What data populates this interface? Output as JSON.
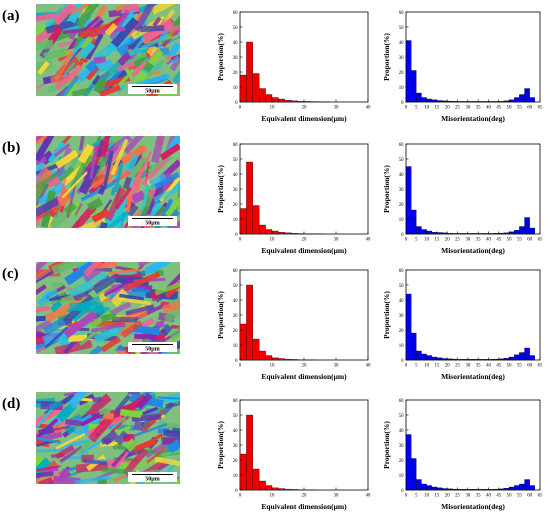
{
  "rows": [
    {
      "label": "(a)",
      "scale_bar": "50μm"
    },
    {
      "label": "(b)",
      "scale_bar": "50μm"
    },
    {
      "label": "(c)",
      "scale_bar": "50μm"
    },
    {
      "label": "(d)",
      "scale_bar": "50μm"
    }
  ],
  "chart_data": [
    {
      "panel": "(a) size",
      "type": "bar",
      "color": "#ee0000",
      "xlabel": "Equivalent dimension(μm)",
      "ylabel": "Proportion(%)",
      "xlim": [
        0,
        40
      ],
      "ylim": [
        0,
        60
      ],
      "bin_width": 2,
      "xticks": [
        0,
        10,
        20,
        30,
        40
      ],
      "yticks": [
        0,
        10,
        20,
        30,
        40,
        50,
        60
      ],
      "x": [
        0,
        2,
        4,
        6,
        8,
        10,
        12,
        14,
        16,
        18,
        20,
        22,
        24,
        26
      ],
      "values": [
        18,
        40,
        19,
        9,
        5,
        3,
        2,
        1.2,
        0.8,
        0.5,
        0.4,
        0.3,
        0.2,
        0.1
      ]
    },
    {
      "panel": "(a) misorientation",
      "type": "bar",
      "color": "#0000ee",
      "xlabel": "Misorientation(deg)",
      "ylabel": "Proportion(%)",
      "xlim": [
        0,
        65
      ],
      "ylim": [
        0,
        60
      ],
      "bin_width": 2.5,
      "xticks": [
        0,
        5,
        10,
        15,
        20,
        25,
        30,
        35,
        40,
        45,
        50,
        55,
        60,
        65
      ],
      "yticks": [
        0,
        10,
        20,
        30,
        40,
        50,
        60
      ],
      "x": [
        0,
        2.5,
        5,
        7.5,
        10,
        12.5,
        15,
        17.5,
        20,
        22.5,
        25,
        27.5,
        30,
        32.5,
        35,
        37.5,
        40,
        42.5,
        45,
        47.5,
        50,
        52.5,
        55,
        57.5,
        60
      ],
      "values": [
        41,
        21,
        6,
        3,
        2,
        1.5,
        1,
        0.8,
        0.6,
        0.5,
        0.4,
        0.4,
        0.4,
        0.4,
        0.4,
        0.4,
        0.4,
        0.4,
        0.5,
        0.8,
        1.5,
        3,
        5,
        9,
        3
      ]
    },
    {
      "panel": "(b) size",
      "type": "bar",
      "color": "#ee0000",
      "xlabel": "Equivalent dimension(μm)",
      "ylabel": "Proportion(%)",
      "xlim": [
        0,
        40
      ],
      "ylim": [
        0,
        60
      ],
      "bin_width": 2,
      "xticks": [
        0,
        10,
        20,
        30,
        40
      ],
      "yticks": [
        0,
        10,
        20,
        30,
        40,
        50,
        60
      ],
      "x": [
        0,
        2,
        4,
        6,
        8,
        10,
        12,
        14,
        16,
        18,
        20,
        22,
        24
      ],
      "values": [
        17,
        48,
        19,
        6,
        3,
        2,
        1.2,
        0.8,
        0.5,
        0.3,
        0.2,
        0.2,
        0.1
      ]
    },
    {
      "panel": "(b) misorientation",
      "type": "bar",
      "color": "#0000ee",
      "xlabel": "Misorientation(deg)",
      "ylabel": "Proportion(%)",
      "xlim": [
        0,
        65
      ],
      "ylim": [
        0,
        60
      ],
      "bin_width": 2.5,
      "xticks": [
        0,
        5,
        10,
        15,
        20,
        25,
        30,
        35,
        40,
        45,
        50,
        55,
        60,
        65
      ],
      "yticks": [
        0,
        10,
        20,
        30,
        40,
        50,
        60
      ],
      "x": [
        0,
        2.5,
        5,
        7.5,
        10,
        12.5,
        15,
        17.5,
        20,
        22.5,
        25,
        27.5,
        30,
        32.5,
        35,
        37.5,
        40,
        42.5,
        45,
        47.5,
        50,
        52.5,
        55,
        57.5,
        60
      ],
      "values": [
        45,
        16,
        5,
        3,
        2,
        1.2,
        1,
        0.8,
        0.5,
        0.4,
        0.4,
        0.4,
        0.4,
        0.4,
        0.4,
        0.4,
        0.4,
        0.5,
        0.6,
        0.8,
        1.5,
        2.5,
        5,
        11,
        4
      ]
    },
    {
      "panel": "(c) size",
      "type": "bar",
      "color": "#ee0000",
      "xlabel": "Equivalent dimension(μm)",
      "ylabel": "Proportion(%)",
      "xlim": [
        0,
        40
      ],
      "ylim": [
        0,
        60
      ],
      "bin_width": 2,
      "xticks": [
        0,
        10,
        20,
        30,
        40
      ],
      "yticks": [
        0,
        10,
        20,
        30,
        40,
        50,
        60
      ],
      "x": [
        0,
        2,
        4,
        6,
        8,
        10,
        12,
        14,
        16,
        18,
        20,
        22
      ],
      "values": [
        24,
        50,
        14,
        6,
        3,
        1.5,
        1,
        0.6,
        0.4,
        0.2,
        0.1,
        0.1
      ]
    },
    {
      "panel": "(c) misorientation",
      "type": "bar",
      "color": "#0000ee",
      "xlabel": "Misorientation(deg)",
      "ylabel": "Proportion(%)",
      "xlim": [
        0,
        65
      ],
      "ylim": [
        0,
        60
      ],
      "bin_width": 2.5,
      "xticks": [
        0,
        5,
        10,
        15,
        20,
        25,
        30,
        35,
        40,
        45,
        50,
        55,
        60,
        65
      ],
      "yticks": [
        0,
        10,
        20,
        30,
        40,
        50,
        60
      ],
      "x": [
        0,
        2.5,
        5,
        7.5,
        10,
        12.5,
        15,
        17.5,
        20,
        22.5,
        25,
        27.5,
        30,
        32.5,
        35,
        37.5,
        40,
        42.5,
        45,
        47.5,
        50,
        52.5,
        55,
        57.5,
        60
      ],
      "values": [
        44,
        18,
        6,
        4,
        3,
        2,
        1.5,
        1,
        0.8,
        0.6,
        0.5,
        0.5,
        0.5,
        0.5,
        0.5,
        0.5,
        0.5,
        0.6,
        0.8,
        1.2,
        2,
        3.5,
        5,
        8,
        3
      ]
    },
    {
      "panel": "(d) size",
      "type": "bar",
      "color": "#ee0000",
      "xlabel": "Equivalent dimension(μm)",
      "ylabel": "Proportion(%)",
      "xlim": [
        0,
        40
      ],
      "ylim": [
        0,
        60
      ],
      "bin_width": 2,
      "xticks": [
        0,
        10,
        20,
        30,
        40
      ],
      "yticks": [
        0,
        10,
        20,
        30,
        40,
        50,
        60
      ],
      "x": [
        0,
        2,
        4,
        6,
        8,
        10,
        12,
        14,
        16,
        18,
        20,
        22
      ],
      "values": [
        24,
        50,
        14,
        6,
        3,
        1.5,
        1,
        0.6,
        0.4,
        0.2,
        0.1,
        0.1
      ]
    },
    {
      "panel": "(d) misorientation",
      "type": "bar",
      "color": "#0000ee",
      "xlabel": "Misorientation(deg)",
      "ylabel": "Proportion(%)",
      "xlim": [
        0,
        65
      ],
      "ylim": [
        0,
        60
      ],
      "bin_width": 2.5,
      "xticks": [
        0,
        5,
        10,
        15,
        20,
        25,
        30,
        35,
        40,
        45,
        50,
        55,
        60,
        65
      ],
      "yticks": [
        0,
        10,
        20,
        30,
        40,
        50,
        60
      ],
      "x": [
        0,
        2.5,
        5,
        7.5,
        10,
        12.5,
        15,
        17.5,
        20,
        22.5,
        25,
        27.5,
        30,
        32.5,
        35,
        37.5,
        40,
        42.5,
        45,
        47.5,
        50,
        52.5,
        55,
        57.5,
        60
      ],
      "values": [
        37,
        21,
        7,
        4,
        3,
        2,
        1.5,
        1,
        0.8,
        0.6,
        0.5,
        0.5,
        0.5,
        0.5,
        0.5,
        0.5,
        0.5,
        0.6,
        0.8,
        1.2,
        2,
        3,
        4,
        7,
        3
      ]
    }
  ]
}
